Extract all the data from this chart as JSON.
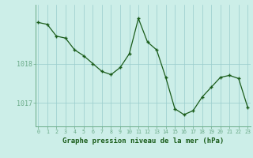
{
  "x": [
    0,
    1,
    2,
    3,
    4,
    5,
    6,
    7,
    8,
    9,
    10,
    11,
    12,
    13,
    14,
    15,
    16,
    17,
    18,
    19,
    20,
    21,
    22,
    23
  ],
  "y": [
    1019.05,
    1019.0,
    1018.7,
    1018.65,
    1018.35,
    1018.2,
    1018.0,
    1017.8,
    1017.72,
    1017.9,
    1018.25,
    1019.15,
    1018.55,
    1018.35,
    1017.65,
    1016.85,
    1016.7,
    1016.8,
    1017.15,
    1017.4,
    1017.65,
    1017.7,
    1017.62,
    1016.88
  ],
  "ylim": [
    1016.4,
    1019.5
  ],
  "yticks": [
    1017.0,
    1018.0
  ],
  "ylabel_values": [
    "1017",
    "1018"
  ],
  "xlabel": "Graphe pression niveau de la mer (hPa)",
  "line_color": "#1a5c1a",
  "marker_color": "#1a5c1a",
  "bg_color": "#cceee8",
  "grid_color": "#99cccc",
  "axis_color": "#6aaa88",
  "tick_label_color": "#1a5c1a",
  "xlabel_color": "#1a5c1a"
}
